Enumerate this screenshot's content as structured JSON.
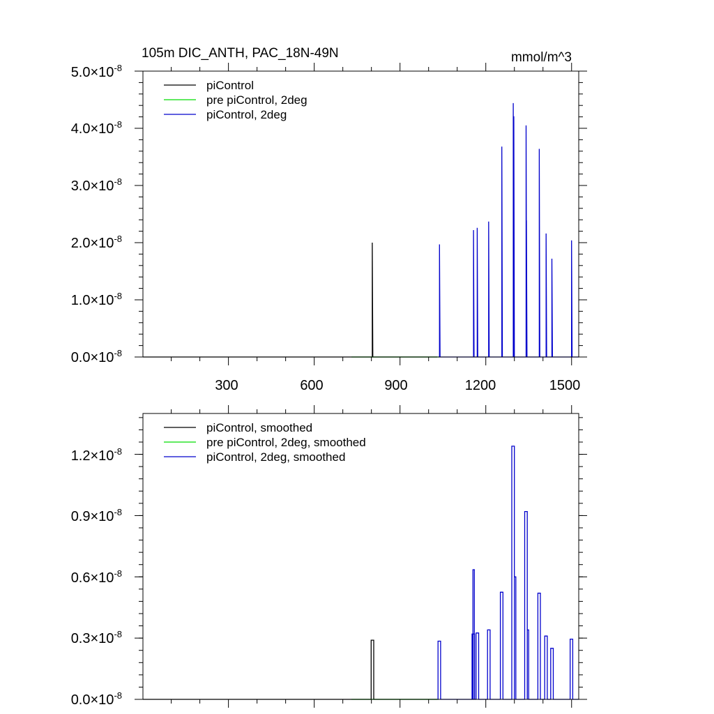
{
  "panels": [
    {
      "title_left": "105m DIC_ANTH, PAC_18N-49N",
      "title_right": "mmol/m^3",
      "legend": [
        {
          "label": "piControl",
          "color": "#000000"
        },
        {
          "label": "pre piControl, 2deg",
          "color": "#00dd00"
        },
        {
          "label": "piControl, 2deg",
          "color": "#0000cc"
        }
      ],
      "x_ticks": [
        "300",
        "600",
        "900",
        "1200",
        "1500"
      ],
      "y_ticks": [
        {
          "mant": "0.0",
          "exp": "-8"
        },
        {
          "mant": "1.0",
          "exp": "-8"
        },
        {
          "mant": "2.0",
          "exp": "-8"
        },
        {
          "mant": "3.0",
          "exp": "-8"
        },
        {
          "mant": "4.0",
          "exp": "-8"
        },
        {
          "mant": "5.0",
          "exp": "-8"
        }
      ]
    },
    {
      "legend": [
        {
          "label": "piControl, smoothed",
          "color": "#000000"
        },
        {
          "label": "pre piControl, 2deg, smoothed",
          "color": "#00dd00"
        },
        {
          "label": "piControl, 2deg, smoothed",
          "color": "#0000cc"
        }
      ],
      "y_ticks": [
        {
          "mant": "0.0",
          "exp": "-8"
        },
        {
          "mant": "0.3",
          "exp": "-8"
        },
        {
          "mant": "0.6",
          "exp": "-8"
        },
        {
          "mant": "0.9",
          "exp": "-8"
        },
        {
          "mant": "1.2",
          "exp": "-8"
        }
      ]
    }
  ],
  "chart_data": [
    {
      "type": "line",
      "title": "105m DIC_ANTH, PAC_18N-49N",
      "ylabel": "mmol/m^3",
      "xlim": [
        1,
        1525
      ],
      "ylim": [
        0,
        5e-08
      ],
      "x_ticks": [
        300,
        600,
        900,
        1200,
        1500
      ],
      "y_ticks": [
        0,
        1e-08,
        2e-08,
        3e-08,
        4e-08,
        5e-08
      ],
      "legend_position": "top-left",
      "series": [
        {
          "name": "piControl",
          "color": "#000000",
          "x_range": [
            1,
            1030
          ],
          "spikes": [
            {
              "x": 803,
              "y": 2e-08
            }
          ]
        },
        {
          "name": "pre piControl, 2deg",
          "color": "#00dd00",
          "x_range": [
            730,
            1035
          ],
          "spikes": []
        },
        {
          "name": "piControl, 2deg",
          "color": "#0000cc",
          "x_range": [
            1035,
            1525
          ],
          "spikes": [
            {
              "x": 1038,
              "y": 1.97e-08
            },
            {
              "x": 1157,
              "y": 2.22e-08
            },
            {
              "x": 1170,
              "y": 2.26e-08
            },
            {
              "x": 1210,
              "y": 2.37e-08
            },
            {
              "x": 1256,
              "y": 3.68e-08
            },
            {
              "x": 1296,
              "y": 4.44e-08
            },
            {
              "x": 1298,
              "y": 4.21e-08
            },
            {
              "x": 1341,
              "y": 4.05e-08
            },
            {
              "x": 1342,
              "y": 2.39e-08
            },
            {
              "x": 1387,
              "y": 3.64e-08
            },
            {
              "x": 1411,
              "y": 2.16e-08
            },
            {
              "x": 1431,
              "y": 1.72e-08
            },
            {
              "x": 1500,
              "y": 2.04e-08
            }
          ]
        }
      ]
    },
    {
      "type": "line",
      "xlim": [
        1,
        1525
      ],
      "ylim": [
        0,
        1.4e-08
      ],
      "x_ticks": [
        300,
        600,
        900,
        1200,
        1500
      ],
      "y_ticks": [
        0,
        3e-09,
        6e-09,
        9e-09,
        1.2e-08
      ],
      "legend_position": "top-left",
      "series": [
        {
          "name": "piControl, smoothed",
          "color": "#000000",
          "x_range": [
            1,
            1030
          ],
          "pulses": [
            {
              "x0": 799,
              "x1": 808,
              "y": 2.9e-09
            }
          ]
        },
        {
          "name": "pre piControl, 2deg, smoothed",
          "color": "#00dd00",
          "x_range": [
            730,
            1035
          ],
          "pulses": []
        },
        {
          "name": "piControl, 2deg, smoothed",
          "color": "#0000cc",
          "x_range": [
            1035,
            1525
          ],
          "pulses": [
            {
              "x0": 1033,
              "x1": 1042,
              "y": 2.85e-09
            },
            {
              "x0": 1152,
              "x1": 1161,
              "y": 3.2e-09
            },
            {
              "x0": 1155,
              "x1": 1160,
              "y": 6.35e-09
            },
            {
              "x0": 1166,
              "x1": 1175,
              "y": 3.25e-09
            },
            {
              "x0": 1206,
              "x1": 1215,
              "y": 3.4e-09
            },
            {
              "x0": 1251,
              "x1": 1260,
              "y": 5.25e-09
            },
            {
              "x0": 1291,
              "x1": 1300,
              "y": 1.24e-08
            },
            {
              "x0": 1300,
              "x1": 1305,
              "y": 6e-09
            },
            {
              "x0": 1336,
              "x1": 1345,
              "y": 9.2e-09
            },
            {
              "x0": 1345,
              "x1": 1350,
              "y": 3.4e-09
            },
            {
              "x0": 1382,
              "x1": 1391,
              "y": 5.2e-09
            },
            {
              "x0": 1406,
              "x1": 1415,
              "y": 3.1e-09
            },
            {
              "x0": 1427,
              "x1": 1436,
              "y": 2.5e-09
            },
            {
              "x0": 1495,
              "x1": 1504,
              "y": 2.95e-09
            }
          ]
        }
      ]
    }
  ]
}
